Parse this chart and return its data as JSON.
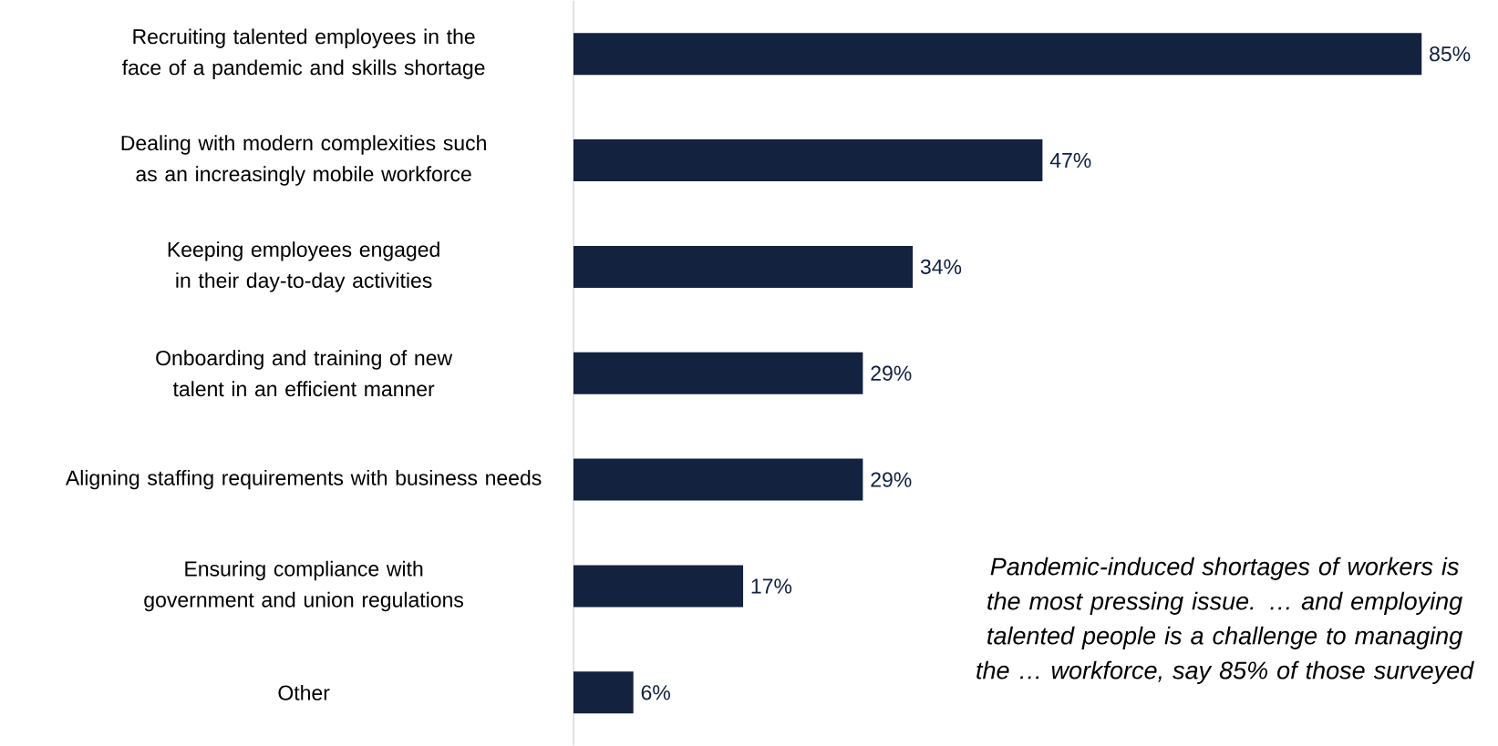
{
  "chart_data": {
    "type": "bar",
    "orientation": "horizontal",
    "categories": [
      "Recruiting talented employees in the face of a pandemic and skills shortage",
      "Dealing with modern complexities such as an increasingly mobile workforce",
      "Keeping employees engaged in their day-to-day activities",
      "Onboarding and training of new talent in an efficient manner",
      "Aligning staffing requirements with business needs",
      "Ensuring compliance with government and union regulations",
      "Other"
    ],
    "values": [
      85,
      47,
      34,
      29,
      29,
      17,
      6
    ],
    "value_labels": [
      "85%",
      "47%",
      "34%",
      "29%",
      "29%",
      "17%",
      "6%"
    ],
    "color": "#12223f",
    "annotations": [
      "Pandemic-induced shortages of workers is the most pressing issue. … and employing talented people is a challenge to managing the … workforce, say 85% of those surveyed"
    ]
  }
}
